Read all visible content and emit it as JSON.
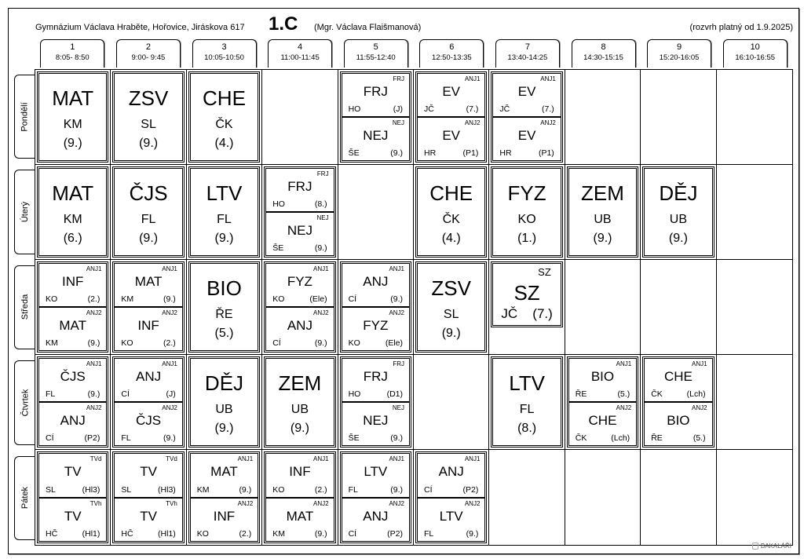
{
  "header": {
    "school": "Gymnázium Václava Hraběte, Hořovice, Jiráskova 617",
    "class": "1.C",
    "teacher": "(Mgr. Václava Flaišmanová)",
    "valid": "(rozvrh platný od 1.9.2025)"
  },
  "periods": [
    {
      "n": "1",
      "t": "8:05- 8:50"
    },
    {
      "n": "2",
      "t": "9:00- 9:45"
    },
    {
      "n": "3",
      "t": "10:05-10:50"
    },
    {
      "n": "4",
      "t": "11:00-11:45"
    },
    {
      "n": "5",
      "t": "11:55-12:40"
    },
    {
      "n": "6",
      "t": "12:50-13:35"
    },
    {
      "n": "7",
      "t": "13:40-14:25"
    },
    {
      "n": "8",
      "t": "14:30-15:15"
    },
    {
      "n": "9",
      "t": "15:20-16:05"
    },
    {
      "n": "10",
      "t": "16:10-16:55"
    }
  ],
  "days": [
    {
      "name": "Pondělí",
      "cells": [
        {
          "type": "single",
          "subject": "MAT",
          "teacher": "KM",
          "room": "(9.)"
        },
        {
          "type": "single",
          "subject": "ZSV",
          "teacher": "SL",
          "room": "(9.)"
        },
        {
          "type": "single",
          "subject": "CHE",
          "teacher": "ČK",
          "room": "(4.)"
        },
        null,
        {
          "type": "split",
          "parts": [
            {
              "group": "FRJ",
              "subject": "FRJ",
              "teacher": "HO",
              "room": "(J)"
            },
            {
              "group": "NEJ",
              "subject": "NEJ",
              "teacher": "ŠE",
              "room": "(9.)"
            }
          ]
        },
        {
          "type": "split",
          "parts": [
            {
              "group": "ANJ1",
              "subject": "EV",
              "teacher": "JČ",
              "room": "(7.)"
            },
            {
              "group": "ANJ2",
              "subject": "EV",
              "teacher": "HR",
              "room": "(P1)"
            }
          ]
        },
        {
          "type": "split",
          "parts": [
            {
              "group": "ANJ1",
              "subject": "EV",
              "teacher": "JČ",
              "room": "(7.)"
            },
            {
              "group": "ANJ2",
              "subject": "EV",
              "teacher": "HR",
              "room": "(P1)"
            }
          ]
        },
        null,
        null,
        null
      ]
    },
    {
      "name": "Úterý",
      "cells": [
        {
          "type": "single",
          "subject": "MAT",
          "teacher": "KM",
          "room": "(6.)"
        },
        {
          "type": "single",
          "subject": "ČJS",
          "teacher": "FL",
          "room": "(9.)"
        },
        {
          "type": "single",
          "subject": "LTV",
          "teacher": "FL",
          "room": "(9.)"
        },
        {
          "type": "split",
          "parts": [
            {
              "group": "FRJ",
              "subject": "FRJ",
              "teacher": "HO",
              "room": "(8.)"
            },
            {
              "group": "NEJ",
              "subject": "NEJ",
              "teacher": "ŠE",
              "room": "(9.)"
            }
          ]
        },
        null,
        {
          "type": "single",
          "subject": "CHE",
          "teacher": "ČK",
          "room": "(4.)"
        },
        {
          "type": "single",
          "subject": "FYZ",
          "teacher": "KO",
          "room": "(1.)"
        },
        {
          "type": "single",
          "subject": "ZEM",
          "teacher": "UB",
          "room": "(9.)"
        },
        {
          "type": "single",
          "subject": "DĚJ",
          "teacher": "UB",
          "room": "(9.)"
        },
        null
      ]
    },
    {
      "name": "Středa",
      "cells": [
        {
          "type": "split",
          "parts": [
            {
              "group": "ANJ1",
              "subject": "INF",
              "teacher": "KO",
              "room": "(2.)"
            },
            {
              "group": "ANJ2",
              "subject": "MAT",
              "teacher": "KM",
              "room": "(9.)"
            }
          ]
        },
        {
          "type": "split",
          "parts": [
            {
              "group": "ANJ1",
              "subject": "MAT",
              "teacher": "KM",
              "room": "(9.)"
            },
            {
              "group": "ANJ2",
              "subject": "INF",
              "teacher": "KO",
              "room": "(2.)"
            }
          ]
        },
        {
          "type": "single",
          "subject": "BIO",
          "teacher": "ŘE",
          "room": "(5.)"
        },
        {
          "type": "split",
          "parts": [
            {
              "group": "ANJ1",
              "subject": "FYZ",
              "teacher": "KO",
              "room": "(Ele)"
            },
            {
              "group": "ANJ2",
              "subject": "ANJ",
              "teacher": "CÍ",
              "room": "(9.)"
            }
          ]
        },
        {
          "type": "split",
          "parts": [
            {
              "group": "ANJ1",
              "subject": "ANJ",
              "teacher": "CÍ",
              "room": "(9.)"
            },
            {
              "group": "ANJ2",
              "subject": "FYZ",
              "teacher": "KO",
              "room": "(Ele)"
            }
          ]
        },
        {
          "type": "single",
          "subject": "ZSV",
          "teacher": "SL",
          "room": "(9.)"
        },
        {
          "type": "compact",
          "group": "SZ",
          "subject": "SZ",
          "teacher": "JČ",
          "room": "(7.)"
        },
        null,
        null,
        null
      ]
    },
    {
      "name": "Čtvrtek",
      "cells": [
        {
          "type": "split",
          "parts": [
            {
              "group": "ANJ1",
              "subject": "ČJS",
              "teacher": "FL",
              "room": "(9.)"
            },
            {
              "group": "ANJ2",
              "subject": "ANJ",
              "teacher": "CÍ",
              "room": "(P2)"
            }
          ]
        },
        {
          "type": "split",
          "parts": [
            {
              "group": "ANJ1",
              "subject": "ANJ",
              "teacher": "CÍ",
              "room": "(J)"
            },
            {
              "group": "ANJ2",
              "subject": "ČJS",
              "teacher": "FL",
              "room": "(9.)"
            }
          ]
        },
        {
          "type": "single",
          "subject": "DĚJ",
          "teacher": "UB",
          "room": "(9.)"
        },
        {
          "type": "single",
          "subject": "ZEM",
          "teacher": "UB",
          "room": "(9.)"
        },
        {
          "type": "split",
          "parts": [
            {
              "group": "FRJ",
              "subject": "FRJ",
              "teacher": "HO",
              "room": "(D1)"
            },
            {
              "group": "NEJ",
              "subject": "NEJ",
              "teacher": "ŠE",
              "room": "(9.)"
            }
          ]
        },
        null,
        {
          "type": "single",
          "subject": "LTV",
          "teacher": "FL",
          "room": "(8.)"
        },
        {
          "type": "split",
          "parts": [
            {
              "group": "ANJ1",
              "subject": "BIO",
              "teacher": "ŘE",
              "room": "(5.)"
            },
            {
              "group": "ANJ2",
              "subject": "CHE",
              "teacher": "ČK",
              "room": "(Lch)"
            }
          ]
        },
        {
          "type": "split",
          "parts": [
            {
              "group": "ANJ1",
              "subject": "CHE",
              "teacher": "ČK",
              "room": "(Lch)"
            },
            {
              "group": "ANJ2",
              "subject": "BIO",
              "teacher": "ŘE",
              "room": "(5.)"
            }
          ]
        },
        null
      ]
    },
    {
      "name": "Pátek",
      "cells": [
        {
          "type": "split",
          "parts": [
            {
              "group": "TVd",
              "subject": "TV",
              "teacher": "SL",
              "room": "(Hl3)"
            },
            {
              "group": "TVh",
              "subject": "TV",
              "teacher": "HČ",
              "room": "(Hl1)"
            }
          ]
        },
        {
          "type": "split",
          "parts": [
            {
              "group": "TVd",
              "subject": "TV",
              "teacher": "SL",
              "room": "(Hl3)"
            },
            {
              "group": "TVh",
              "subject": "TV",
              "teacher": "HČ",
              "room": "(Hl1)"
            }
          ]
        },
        {
          "type": "split",
          "parts": [
            {
              "group": "ANJ1",
              "subject": "MAT",
              "teacher": "KM",
              "room": "(9.)"
            },
            {
              "group": "ANJ2",
              "subject": "INF",
              "teacher": "KO",
              "room": "(2.)"
            }
          ]
        },
        {
          "type": "split",
          "parts": [
            {
              "group": "ANJ1",
              "subject": "INF",
              "teacher": "KO",
              "room": "(2.)"
            },
            {
              "group": "ANJ2",
              "subject": "MAT",
              "teacher": "KM",
              "room": "(9.)"
            }
          ]
        },
        {
          "type": "split",
          "parts": [
            {
              "group": "ANJ1",
              "subject": "LTV",
              "teacher": "FL",
              "room": "(9.)"
            },
            {
              "group": "ANJ2",
              "subject": "ANJ",
              "teacher": "CÍ",
              "room": "(P2)"
            }
          ]
        },
        {
          "type": "split",
          "parts": [
            {
              "group": "ANJ1",
              "subject": "ANJ",
              "teacher": "CÍ",
              "room": "(P2)"
            },
            {
              "group": "ANJ2",
              "subject": "LTV",
              "teacher": "FL",
              "room": "(9.)"
            }
          ]
        },
        null,
        null,
        null,
        null
      ]
    }
  ],
  "logo": {
    "text": "BAKALÁŘI",
    "icon": "bakalari-logo-icon"
  }
}
